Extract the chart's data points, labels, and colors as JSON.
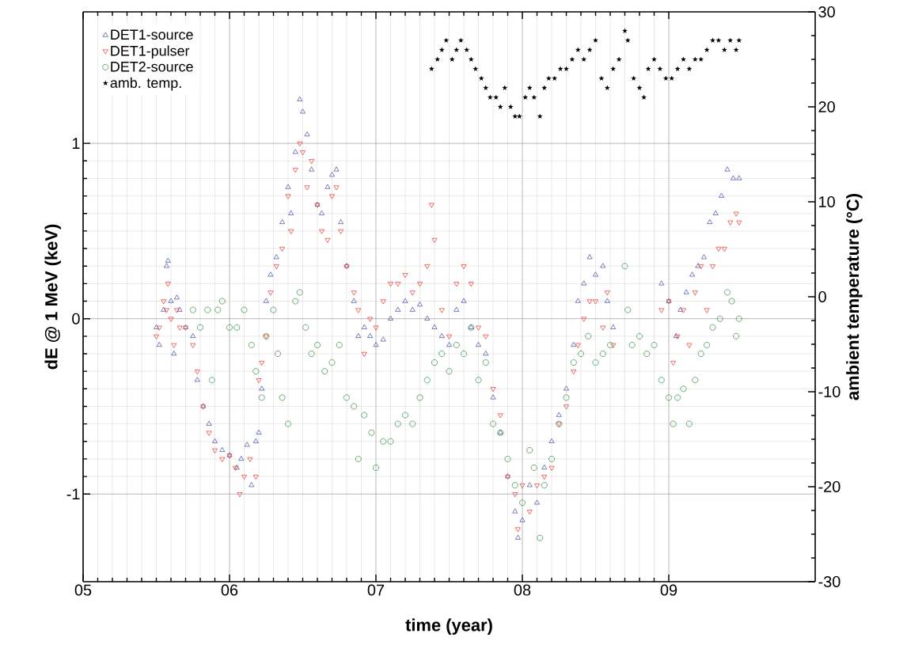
{
  "chart_data": {
    "type": "scatter",
    "xlabel": "time (year)",
    "ylabel": "dE @ 1 MeV (keV)",
    "y2label": "ambient temperature (°C)",
    "xlim": [
      5,
      10
    ],
    "xticks": [
      {
        "value": 5,
        "label": "05"
      },
      {
        "value": 6,
        "label": "06"
      },
      {
        "value": 7,
        "label": "07"
      },
      {
        "value": 8,
        "label": "08"
      },
      {
        "value": 9,
        "label": "09"
      }
    ],
    "ylim": [
      -1.5,
      1.75
    ],
    "yticks": [
      -1,
      0,
      1
    ],
    "y2lim": [
      -30,
      30
    ],
    "y2ticks": [
      -30,
      -20,
      -10,
      0,
      10,
      20,
      30
    ],
    "grid": true,
    "legend": "top left",
    "series": [
      {
        "name": "DET1-source",
        "color": "#3b4ba0",
        "marker": "triangle",
        "x": [
          5.5,
          5.52,
          5.55,
          5.57,
          5.58,
          5.6,
          5.62,
          5.64,
          5.66,
          5.7,
          5.75,
          5.78,
          5.82,
          5.86,
          5.9,
          5.95,
          6.0,
          6.05,
          6.08,
          6.12,
          6.15,
          6.18,
          6.2,
          6.22,
          6.25,
          6.28,
          6.32,
          6.36,
          6.4,
          6.42,
          6.45,
          6.48,
          6.5,
          6.53,
          6.56,
          6.6,
          6.63,
          6.67,
          6.7,
          6.73,
          6.76,
          6.8,
          6.85,
          6.88,
          6.92,
          6.96,
          7.0,
          7.05,
          7.1,
          7.15,
          7.2,
          7.25,
          7.3,
          7.35,
          7.4,
          7.45,
          7.5,
          7.55,
          7.6,
          7.65,
          7.7,
          7.75,
          7.8,
          7.85,
          7.9,
          7.95,
          7.97,
          8.0,
          8.05,
          8.1,
          8.15,
          8.2,
          8.25,
          8.3,
          8.35,
          8.38,
          8.42,
          8.46,
          8.5,
          8.55,
          8.58,
          8.62,
          8.95,
          9.0,
          9.05,
          9.08,
          9.12,
          9.16,
          9.2,
          9.24,
          9.28,
          9.32,
          9.36,
          9.4,
          9.44,
          9.48
        ],
        "values": [
          -0.05,
          -0.15,
          0.05,
          0.3,
          0.33,
          0.1,
          -0.2,
          0.12,
          0.05,
          -0.05,
          -0.1,
          -0.35,
          -0.5,
          -0.6,
          -0.7,
          -0.75,
          -0.78,
          -0.85,
          -0.8,
          -0.72,
          -0.95,
          -0.7,
          -0.65,
          -0.4,
          0.1,
          0.25,
          0.35,
          0.55,
          0.75,
          0.6,
          0.95,
          1.25,
          1.18,
          1.05,
          0.85,
          0.65,
          0.6,
          0.75,
          0.82,
          0.85,
          0.55,
          0.3,
          0.1,
          -0.1,
          -0.05,
          -0.1,
          -0.15,
          -0.12,
          0.0,
          0.05,
          0.1,
          0.05,
          0.08,
          0.0,
          -0.05,
          -0.1,
          -0.15,
          0.05,
          0.1,
          -0.05,
          -0.15,
          -0.2,
          -0.45,
          -0.65,
          -0.9,
          -1.1,
          -1.25,
          -1.15,
          -0.95,
          -1.05,
          -0.85,
          -0.7,
          -0.55,
          -0.4,
          -0.15,
          0.1,
          0.2,
          0.35,
          0.25,
          0.3,
          0.1,
          -0.05,
          0.2,
          0.1,
          -0.1,
          0.05,
          0.15,
          0.25,
          0.3,
          0.35,
          0.55,
          0.6,
          0.7,
          0.85,
          0.8,
          0.8
        ]
      },
      {
        "name": "DET1-pulser",
        "color": "#e8312a",
        "marker": "triangle-down",
        "x": [
          5.5,
          5.52,
          5.55,
          5.57,
          5.58,
          5.6,
          5.62,
          5.64,
          5.66,
          5.7,
          5.75,
          5.78,
          5.82,
          5.86,
          5.9,
          5.95,
          6.0,
          6.04,
          6.07,
          6.1,
          6.14,
          6.18,
          6.2,
          6.22,
          6.25,
          6.28,
          6.32,
          6.36,
          6.4,
          6.42,
          6.45,
          6.48,
          6.5,
          6.53,
          6.56,
          6.6,
          6.63,
          6.67,
          6.7,
          6.73,
          6.76,
          6.8,
          6.85,
          6.88,
          6.92,
          6.96,
          7.0,
          7.05,
          7.1,
          7.15,
          7.2,
          7.25,
          7.3,
          7.35,
          7.38,
          7.4,
          7.45,
          7.5,
          7.55,
          7.6,
          7.65,
          7.7,
          7.75,
          7.8,
          7.85,
          7.9,
          7.95,
          7.97,
          8.0,
          8.05,
          8.1,
          8.15,
          8.2,
          8.25,
          8.3,
          8.35,
          8.38,
          8.42,
          8.46,
          8.5,
          8.55,
          8.58,
          8.62,
          8.95,
          9.0,
          9.03,
          9.06,
          9.1,
          9.14,
          9.18,
          9.22,
          9.26,
          9.3,
          9.34,
          9.38,
          9.42,
          9.46,
          9.48
        ],
        "values": [
          -0.1,
          -0.05,
          0.1,
          0.05,
          0.2,
          0.0,
          -0.15,
          0.05,
          -0.05,
          -0.05,
          -0.15,
          -0.3,
          -0.5,
          -0.65,
          -0.75,
          -0.8,
          -0.78,
          -0.85,
          -1.0,
          -0.9,
          -0.8,
          -0.9,
          -0.35,
          -0.25,
          -0.1,
          0.15,
          0.3,
          0.4,
          0.7,
          0.5,
          0.85,
          1.0,
          0.95,
          0.75,
          0.9,
          0.65,
          0.5,
          0.45,
          0.7,
          0.75,
          0.5,
          0.3,
          0.15,
          0.05,
          -0.2,
          0.0,
          -0.05,
          0.1,
          0.2,
          0.2,
          0.25,
          0.15,
          0.2,
          0.3,
          0.65,
          0.45,
          0.05,
          -0.1,
          0.2,
          0.3,
          0.2,
          -0.05,
          -0.1,
          -0.4,
          -0.55,
          -0.9,
          -1.0,
          -1.2,
          -0.95,
          -1.1,
          -0.95,
          -0.9,
          -0.85,
          -0.6,
          -0.5,
          -0.3,
          -0.15,
          0.0,
          0.1,
          0.1,
          -0.05,
          0.15,
          -0.15,
          0.05,
          0.1,
          -0.25,
          -0.1,
          0.05,
          -0.15,
          0.15,
          0.3,
          0.05,
          0.3,
          0.4,
          0.4,
          0.55,
          0.6,
          0.55
        ]
      },
      {
        "name": "DET2-source",
        "color": "#2e8b3a",
        "marker": "circle",
        "x": [
          5.75,
          5.8,
          5.85,
          5.88,
          5.92,
          5.95,
          6.0,
          6.05,
          6.1,
          6.15,
          6.18,
          6.22,
          6.25,
          6.3,
          6.33,
          6.36,
          6.4,
          6.45,
          6.48,
          6.52,
          6.56,
          6.6,
          6.65,
          6.7,
          6.75,
          6.8,
          6.85,
          6.88,
          6.92,
          6.97,
          7.0,
          7.05,
          7.1,
          7.15,
          7.2,
          7.25,
          7.3,
          7.35,
          7.4,
          7.45,
          7.5,
          7.55,
          7.6,
          7.65,
          7.7,
          7.75,
          7.8,
          7.85,
          7.9,
          7.95,
          8.0,
          8.05,
          8.08,
          8.12,
          8.15,
          8.2,
          8.25,
          8.3,
          8.35,
          8.4,
          8.45,
          8.5,
          8.55,
          8.6,
          8.7,
          8.72,
          8.75,
          8.8,
          8.85,
          8.9,
          8.95,
          9.0,
          9.03,
          9.06,
          9.1,
          9.14,
          9.18,
          9.22,
          9.26,
          9.3,
          9.35,
          9.4,
          9.43,
          9.46,
          9.48
        ],
        "values": [
          0.05,
          -0.05,
          0.05,
          -0.35,
          0.05,
          0.1,
          -0.05,
          -0.05,
          0.05,
          -0.15,
          -0.3,
          -0.45,
          -0.1,
          0.05,
          -0.2,
          -0.45,
          -0.6,
          0.1,
          0.15,
          -0.05,
          -0.2,
          -0.15,
          -0.3,
          -0.25,
          -0.15,
          -0.45,
          -0.5,
          -0.8,
          -0.55,
          -0.65,
          -0.85,
          -0.7,
          -0.7,
          -0.6,
          -0.55,
          -0.6,
          -0.45,
          -0.35,
          -0.25,
          -0.2,
          -0.3,
          -0.15,
          -0.2,
          -0.05,
          -0.35,
          -0.25,
          -0.6,
          -0.65,
          -0.8,
          -0.95,
          -1.05,
          -0.75,
          -0.85,
          -1.25,
          -0.95,
          -0.8,
          -0.6,
          -0.45,
          -0.25,
          -0.2,
          -0.1,
          -0.25,
          -0.2,
          -0.15,
          0.3,
          0.05,
          -0.15,
          -0.1,
          -0.2,
          -0.15,
          -0.35,
          -0.45,
          -0.6,
          -0.45,
          -0.4,
          -0.6,
          -0.35,
          -0.2,
          -0.15,
          -0.05,
          0.0,
          0.15,
          0.1,
          -0.1,
          0.0
        ]
      },
      {
        "name": "amb. temp.",
        "color": "#000000",
        "marker": "star",
        "axis": "y2",
        "x": [
          7.38,
          7.42,
          7.45,
          7.48,
          7.52,
          7.55,
          7.58,
          7.62,
          7.65,
          7.68,
          7.72,
          7.75,
          7.78,
          7.82,
          7.85,
          7.88,
          7.92,
          7.95,
          7.98,
          8.02,
          8.05,
          8.08,
          8.12,
          8.15,
          8.18,
          8.22,
          8.26,
          8.3,
          8.34,
          8.38,
          8.42,
          8.46,
          8.5,
          8.54,
          8.58,
          8.62,
          8.66,
          8.7,
          8.72,
          8.76,
          8.8,
          8.83,
          8.86,
          8.9,
          8.94,
          8.98,
          9.02,
          9.06,
          9.1,
          9.14,
          9.18,
          9.22,
          9.26,
          9.3,
          9.34,
          9.38,
          9.42,
          9.46,
          9.48
        ],
        "values": [
          24,
          25,
          26,
          27,
          25,
          26,
          27,
          26,
          25,
          24,
          23,
          22,
          21,
          21,
          20,
          22,
          20,
          19,
          19,
          21,
          22,
          21,
          19,
          22,
          23,
          23,
          24,
          24,
          25,
          26,
          25,
          26,
          27,
          23,
          22,
          24,
          25,
          28,
          27,
          23,
          22,
          21,
          24,
          25,
          24,
          23,
          23,
          24,
          25,
          24,
          25,
          25,
          26,
          27,
          27,
          26,
          27,
          26,
          27
        ]
      }
    ]
  }
}
